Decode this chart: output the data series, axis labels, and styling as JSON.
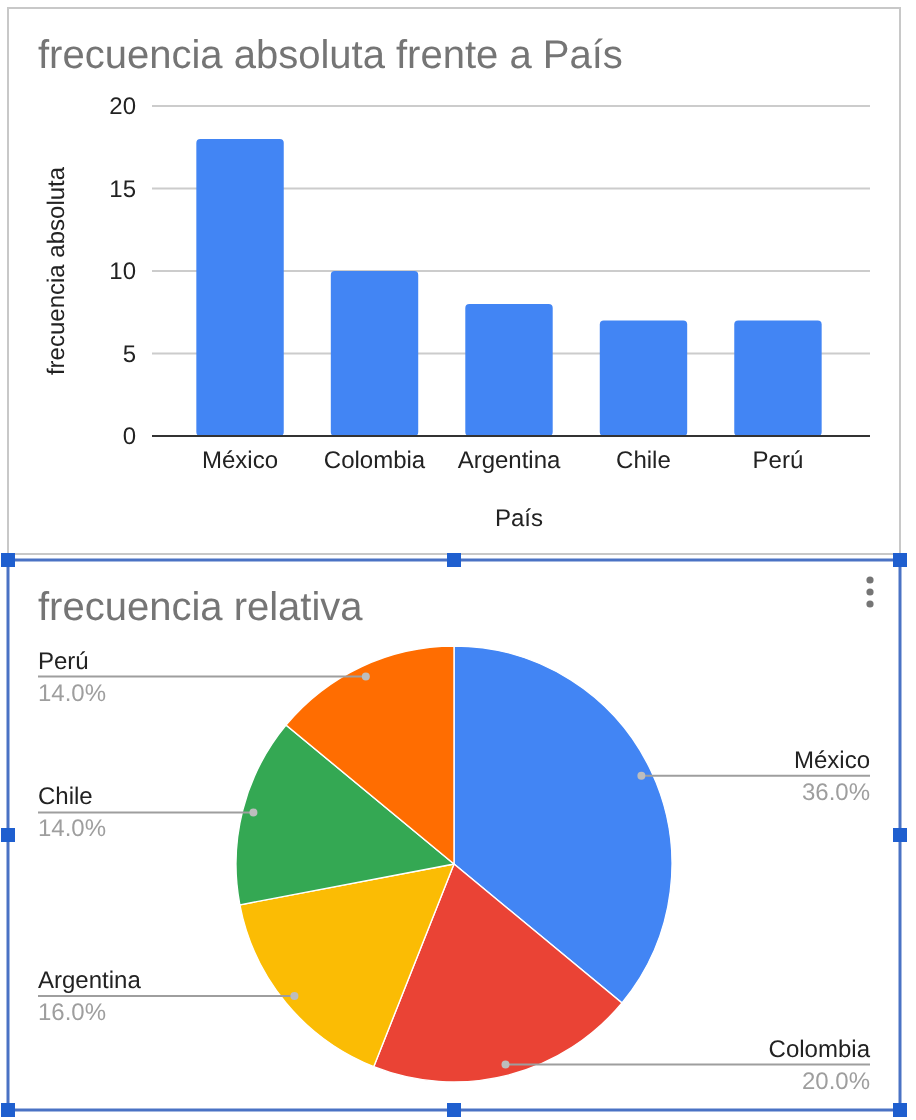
{
  "chart_data": [
    {
      "type": "bar",
      "title": "frecuencia absoluta frente a País",
      "xlabel": "País",
      "ylabel": "frecuencia absoluta",
      "categories": [
        "México",
        "Colombia",
        "Argentina",
        "Chile",
        "Perú"
      ],
      "values": [
        18,
        10,
        8,
        7,
        7
      ],
      "color": "#4285f4",
      "ylim": [
        0,
        20
      ],
      "yticks": [
        0,
        5,
        10,
        15,
        20
      ],
      "grid": "y"
    },
    {
      "type": "pie",
      "title": "frecuencia relativa",
      "categories": [
        "México",
        "Colombia",
        "Argentina",
        "Chile",
        "Perú"
      ],
      "values": [
        36,
        20,
        16,
        14,
        14
      ],
      "value_labels": [
        "36.0%",
        "20.0%",
        "16.0%",
        "14.0%",
        "14.0%"
      ],
      "colors": [
        "#4285f4",
        "#ea4335",
        "#fbbc04",
        "#34a853",
        "#ff6d01"
      ]
    }
  ]
}
